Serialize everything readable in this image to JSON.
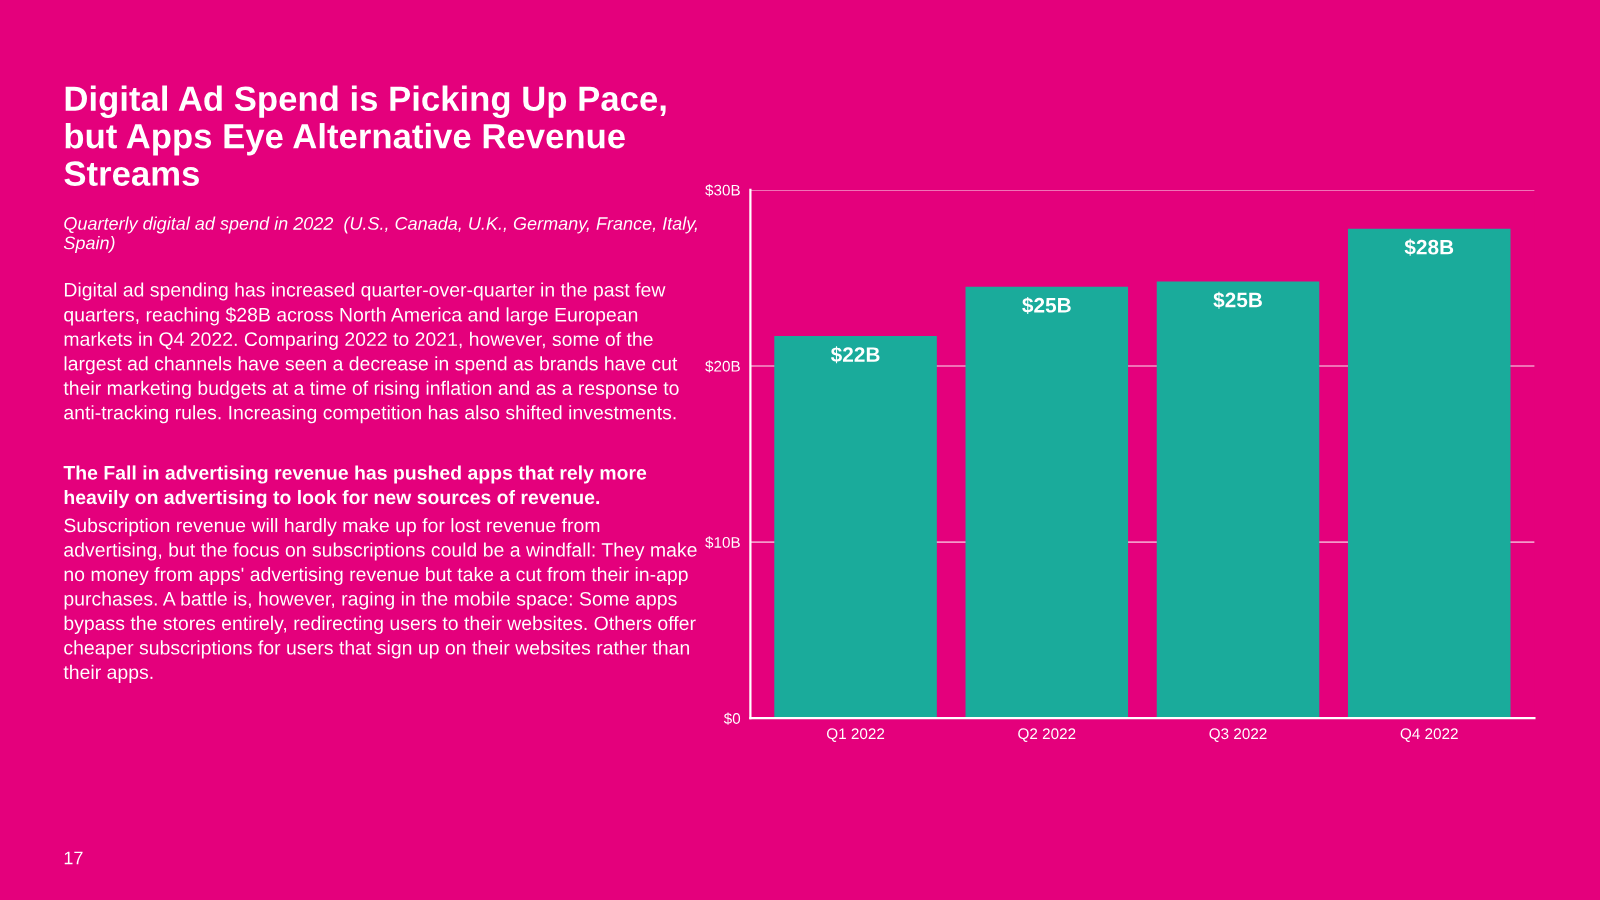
{
  "chart_data": {
    "type": "bar",
    "title": "Digital Ad Spend is Picking Up Pace, but Apps Eye Alternative Revenue Streams",
    "subtitle": "Quarterly digital ad spend in 2022  (U.S., Canada, U.K., Germany, France, Italy, Spain)",
    "annotations": [
      "Digital ad spending has increased quarter-over-quarter in the past few quarters, reaching $28B across North America and large European markets in Q4 2022. Comparing 2022 to 2021, however, some of the largest ad channels have seen a decrease in spend as brands have cut their marketing budgets at a time of rising inflation and as a response to anti-tracking rules. Increasing competition has also shifted investments.",
      "The Fall in advertising revenue has pushed apps that rely more heavily on advertising to look for new sources of revenue.",
      "Subscription revenue will hardly make up for lost revenue from advertising, but the focus on subscriptions could be a windfall: They make no money from apps' advertising revenue but take a cut from their in-app purchases. A battle is, however, raging in the mobile space: Some apps bypass the stores entirely, redirecting users to their websites. Others offer cheaper subscriptions for users that sign up on their websites rather than their apps.",
      "17"
    ],
    "categories": [
      "Q1 2022",
      "Q2 2022",
      "Q3 2022",
      "Q4 2022"
    ],
    "values": [
      21.7,
      24.5,
      24.8,
      27.8
    ],
    "value_labels": [
      "$22B",
      "$25B",
      "$25B",
      "$28B"
    ],
    "color": "#1aab9b",
    "ylim": [
      0,
      30
    ],
    "yticks": [
      {
        "value": 0,
        "label": "$0"
      },
      {
        "value": 10,
        "label": "$10B"
      },
      {
        "value": 20,
        "label": "$20B"
      },
      {
        "value": 30,
        "label": "$30B"
      }
    ],
    "grid": "y",
    "legend": false
  }
}
